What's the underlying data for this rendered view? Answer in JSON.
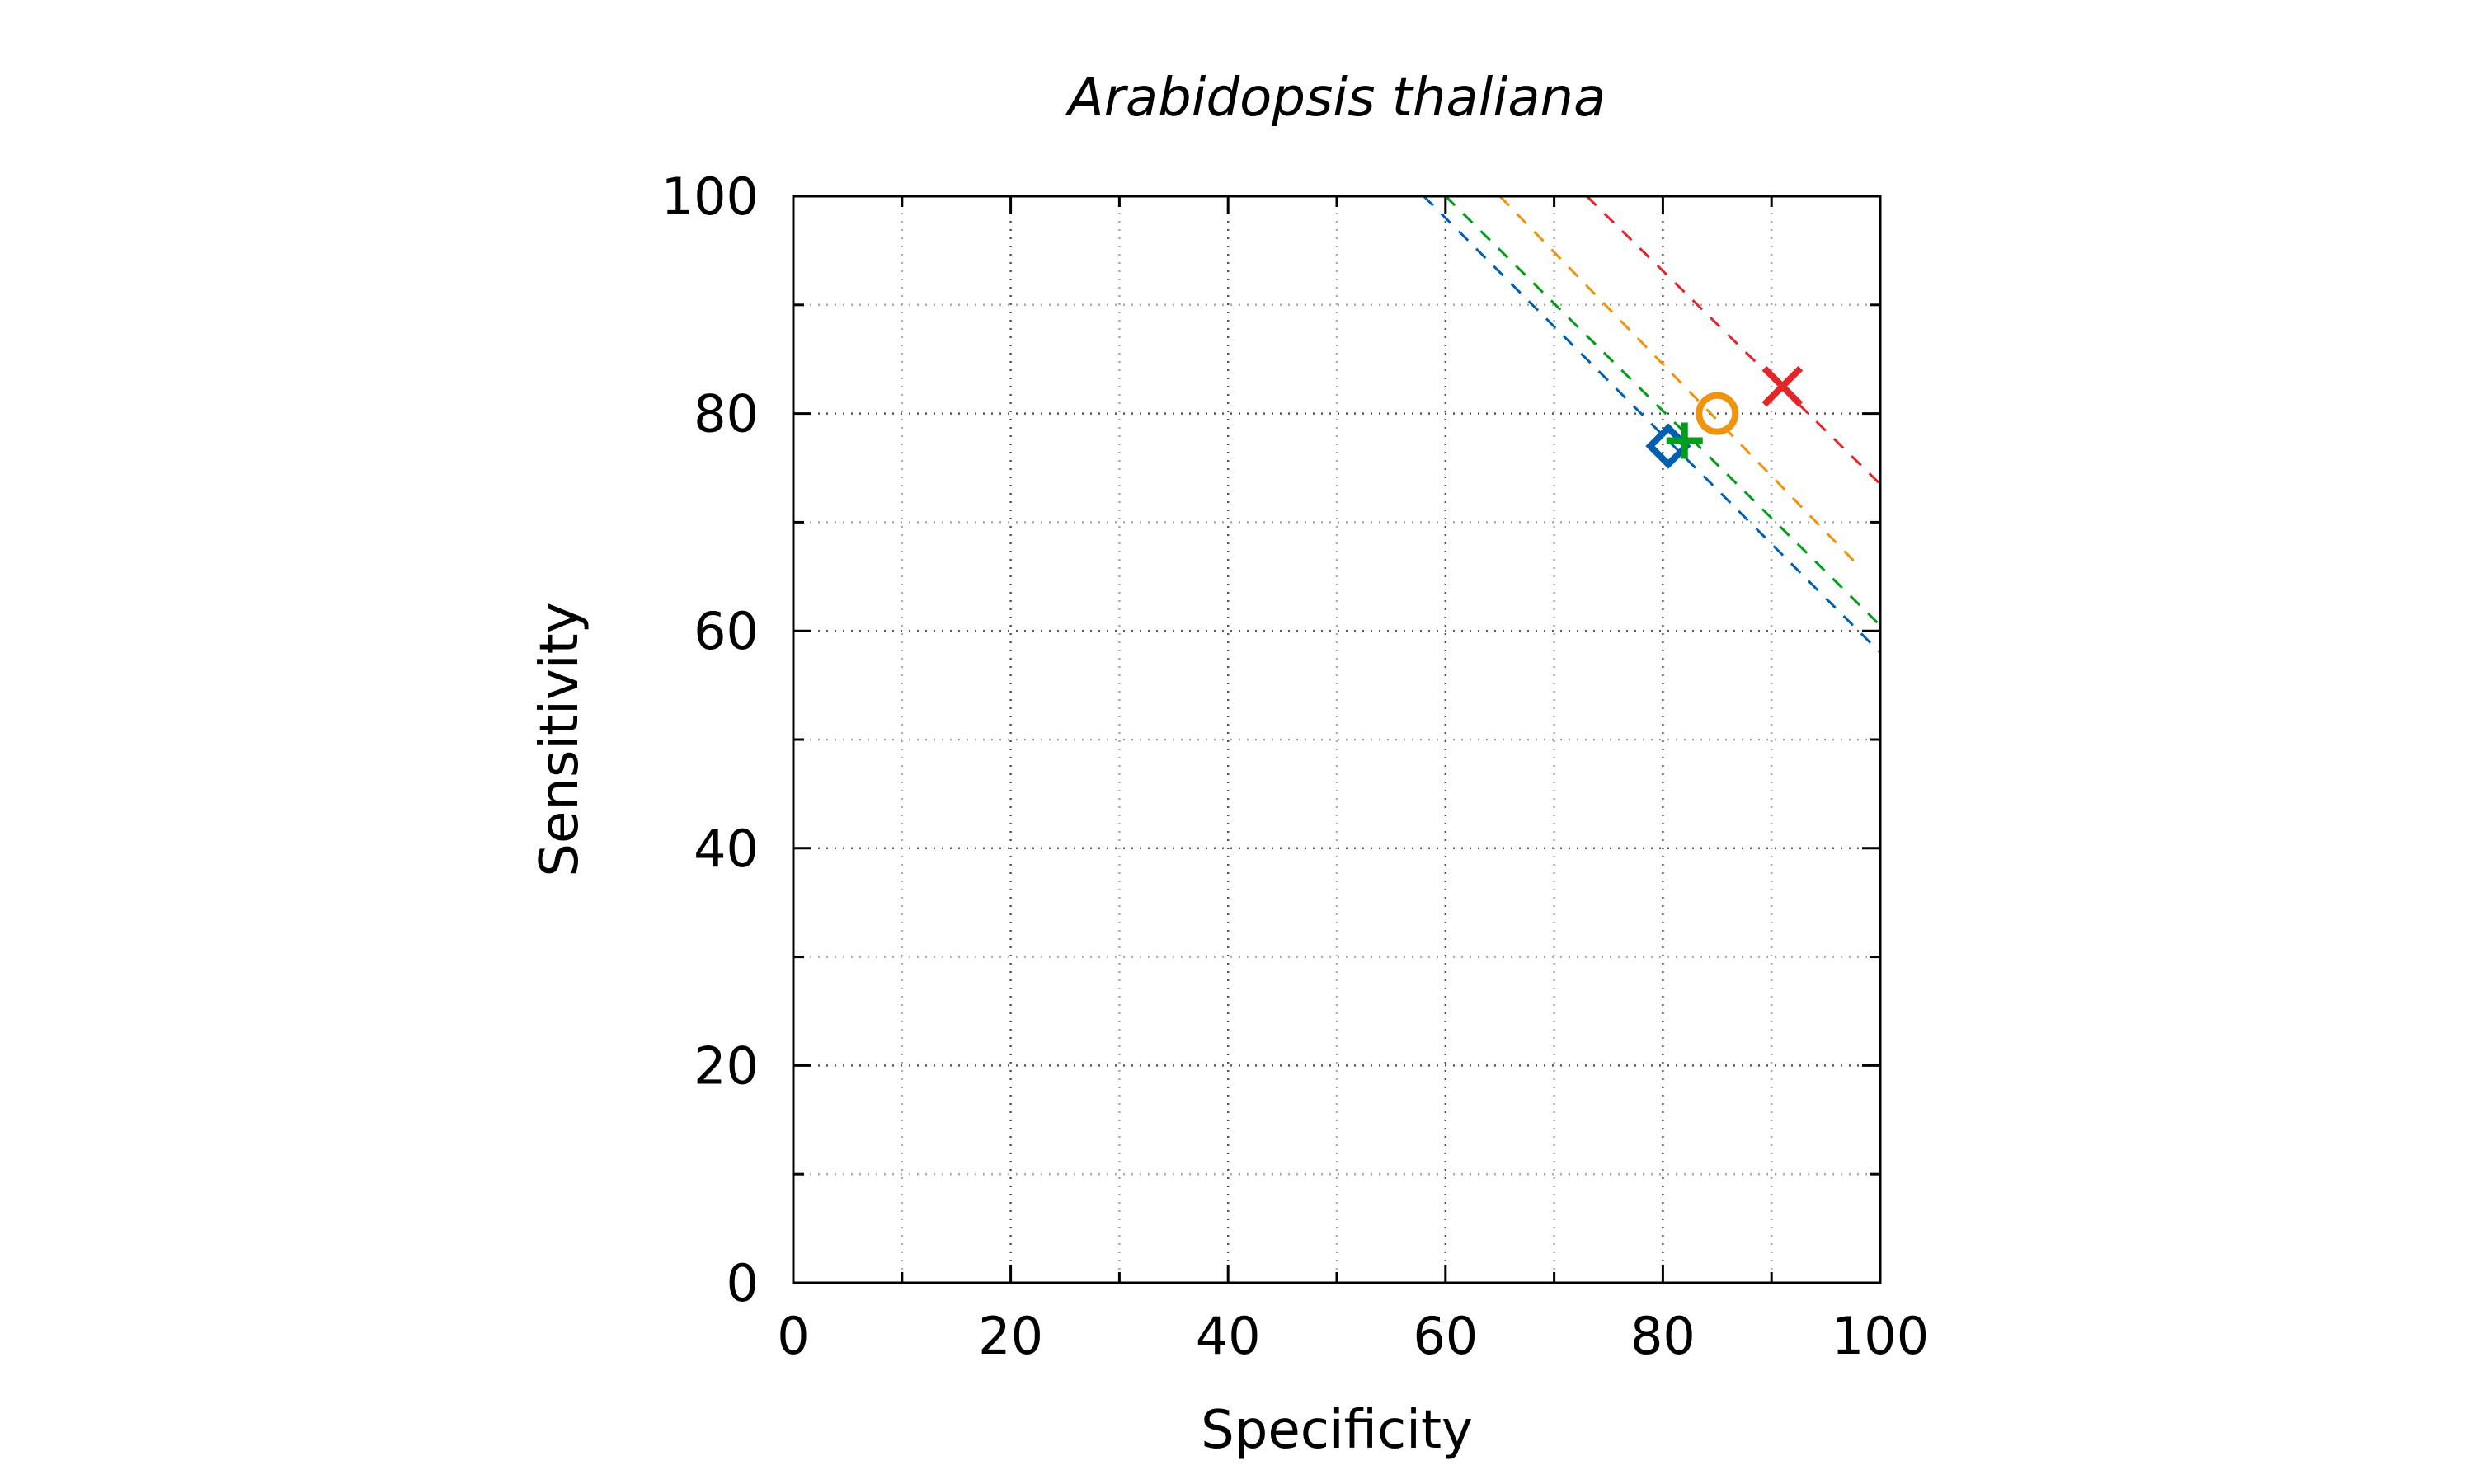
{
  "chart_data": {
    "type": "scatter",
    "title": "Arabidopsis thaliana",
    "xlabel": "Specificity",
    "ylabel": "Sensitivity",
    "xlim": [
      0,
      100
    ],
    "ylim": [
      0,
      100
    ],
    "xticks": [
      "0",
      "20",
      "40",
      "60",
      "80",
      "100"
    ],
    "yticks": [
      "0",
      "20",
      "40",
      "60",
      "80",
      "100"
    ],
    "grid": true,
    "points": [
      {
        "x": 80.5,
        "y": 77.0,
        "marker": "diamond",
        "color": "#0060ad"
      },
      {
        "x": 82.0,
        "y": 77.5,
        "marker": "plus",
        "color": "#009e1a"
      },
      {
        "x": 85.0,
        "y": 80.0,
        "marker": "circle",
        "color": "#f0940e"
      },
      {
        "x": 91.0,
        "y": 82.5,
        "marker": "cross",
        "color": "#e3262a"
      }
    ],
    "iso_lines": [
      {
        "x_at_top": 58.0,
        "x_at_right": 100,
        "y_at_right": 58.0,
        "color": "#0060ad"
      },
      {
        "x_at_top": 60.0,
        "x_at_right": 100,
        "y_at_right": 60.5,
        "color": "#009e1a"
      },
      {
        "x_at_top": 65.0,
        "x_at_right": 98.0,
        "y_at_right": 66.0,
        "color": "#f0940e"
      },
      {
        "x_at_top": 73.0,
        "x_at_right": 100,
        "y_at_right": 73.5,
        "color": "#e3262a"
      }
    ]
  }
}
